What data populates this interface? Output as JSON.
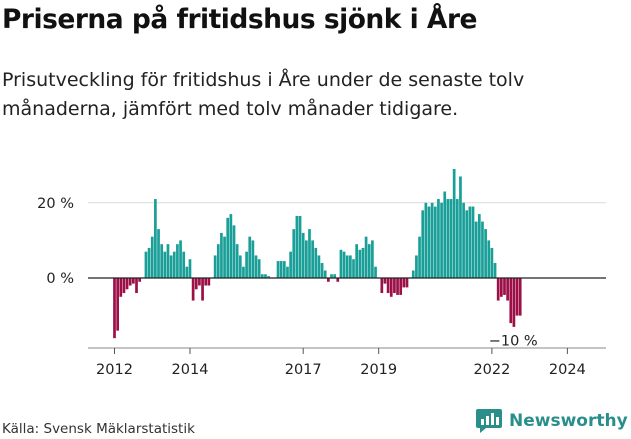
{
  "header": {
    "title": "Priserna på fritidshus sjönk i Åre",
    "subtitle": "Prisutveckling för fritidshus i Åre under de senaste tolv månaderna, jämfört med tolv månader tidigare."
  },
  "footer": {
    "source": "Källa: Svensk Mäklarstatistik",
    "brand": "Newsworthy"
  },
  "colors": {
    "positive": "#1a9f98",
    "negative": "#9c0f47",
    "grid": "#dcdcdc",
    "zero_line": "#222222",
    "brand": "#2a8f8a"
  },
  "chart_data": {
    "type": "bar",
    "title": "Priserna på fritidshus sjönk i Åre",
    "subtitle": "Prisutveckling för fritidshus i Åre under de senaste tolv månaderna, jämfört med tolv månader tidigare.",
    "xlabel": "",
    "ylabel": "",
    "unit": "%",
    "x_start": "2012-01",
    "frequency": "monthly",
    "ylim": [
      -20,
      30
    ],
    "yticks": [
      {
        "value": 0,
        "label": "0 %"
      },
      {
        "value": 20,
        "label": "20 %"
      }
    ],
    "xticks": [
      {
        "index": 0,
        "label": "2012"
      },
      {
        "index": 24,
        "label": "2014"
      },
      {
        "index": 60,
        "label": "2017"
      },
      {
        "index": 84,
        "label": "2019"
      },
      {
        "index": 120,
        "label": "2022"
      },
      {
        "index": 144,
        "label": "2024"
      }
    ],
    "end_label": "−10 %",
    "values": [
      -16,
      -14,
      -5,
      -4,
      -3,
      -2,
      -1.5,
      -4,
      -1,
      0,
      7,
      8,
      11,
      21,
      13,
      9,
      7,
      9,
      6,
      7,
      9,
      10,
      7,
      3,
      5,
      -6,
      -3,
      -2,
      -6,
      -2,
      -2,
      0,
      6,
      9,
      12,
      11,
      16,
      17,
      14,
      9,
      6,
      3,
      7,
      11,
      10,
      6,
      5,
      1,
      1,
      0.5,
      0,
      0,
      4.5,
      4.5,
      4.5,
      3,
      7,
      13,
      16.5,
      16.5,
      12,
      10,
      13,
      10,
      8,
      6,
      4,
      2,
      -1,
      1,
      1,
      -1,
      7.5,
      7,
      6,
      6,
      5,
      9,
      7.5,
      8,
      11,
      9,
      10,
      3,
      0,
      -4,
      -1.5,
      -4,
      -5,
      -4,
      -4.5,
      -4.5,
      -2.5,
      -2.5,
      0,
      2,
      6,
      11,
      18,
      20,
      19,
      20,
      19,
      21,
      20,
      23,
      21,
      21,
      29,
      21,
      27,
      20,
      18,
      19,
      19,
      15,
      17,
      15,
      13,
      10,
      8,
      4,
      -6,
      -5,
      -4.5,
      -6,
      -12,
      -13,
      -10,
      -10
    ]
  }
}
